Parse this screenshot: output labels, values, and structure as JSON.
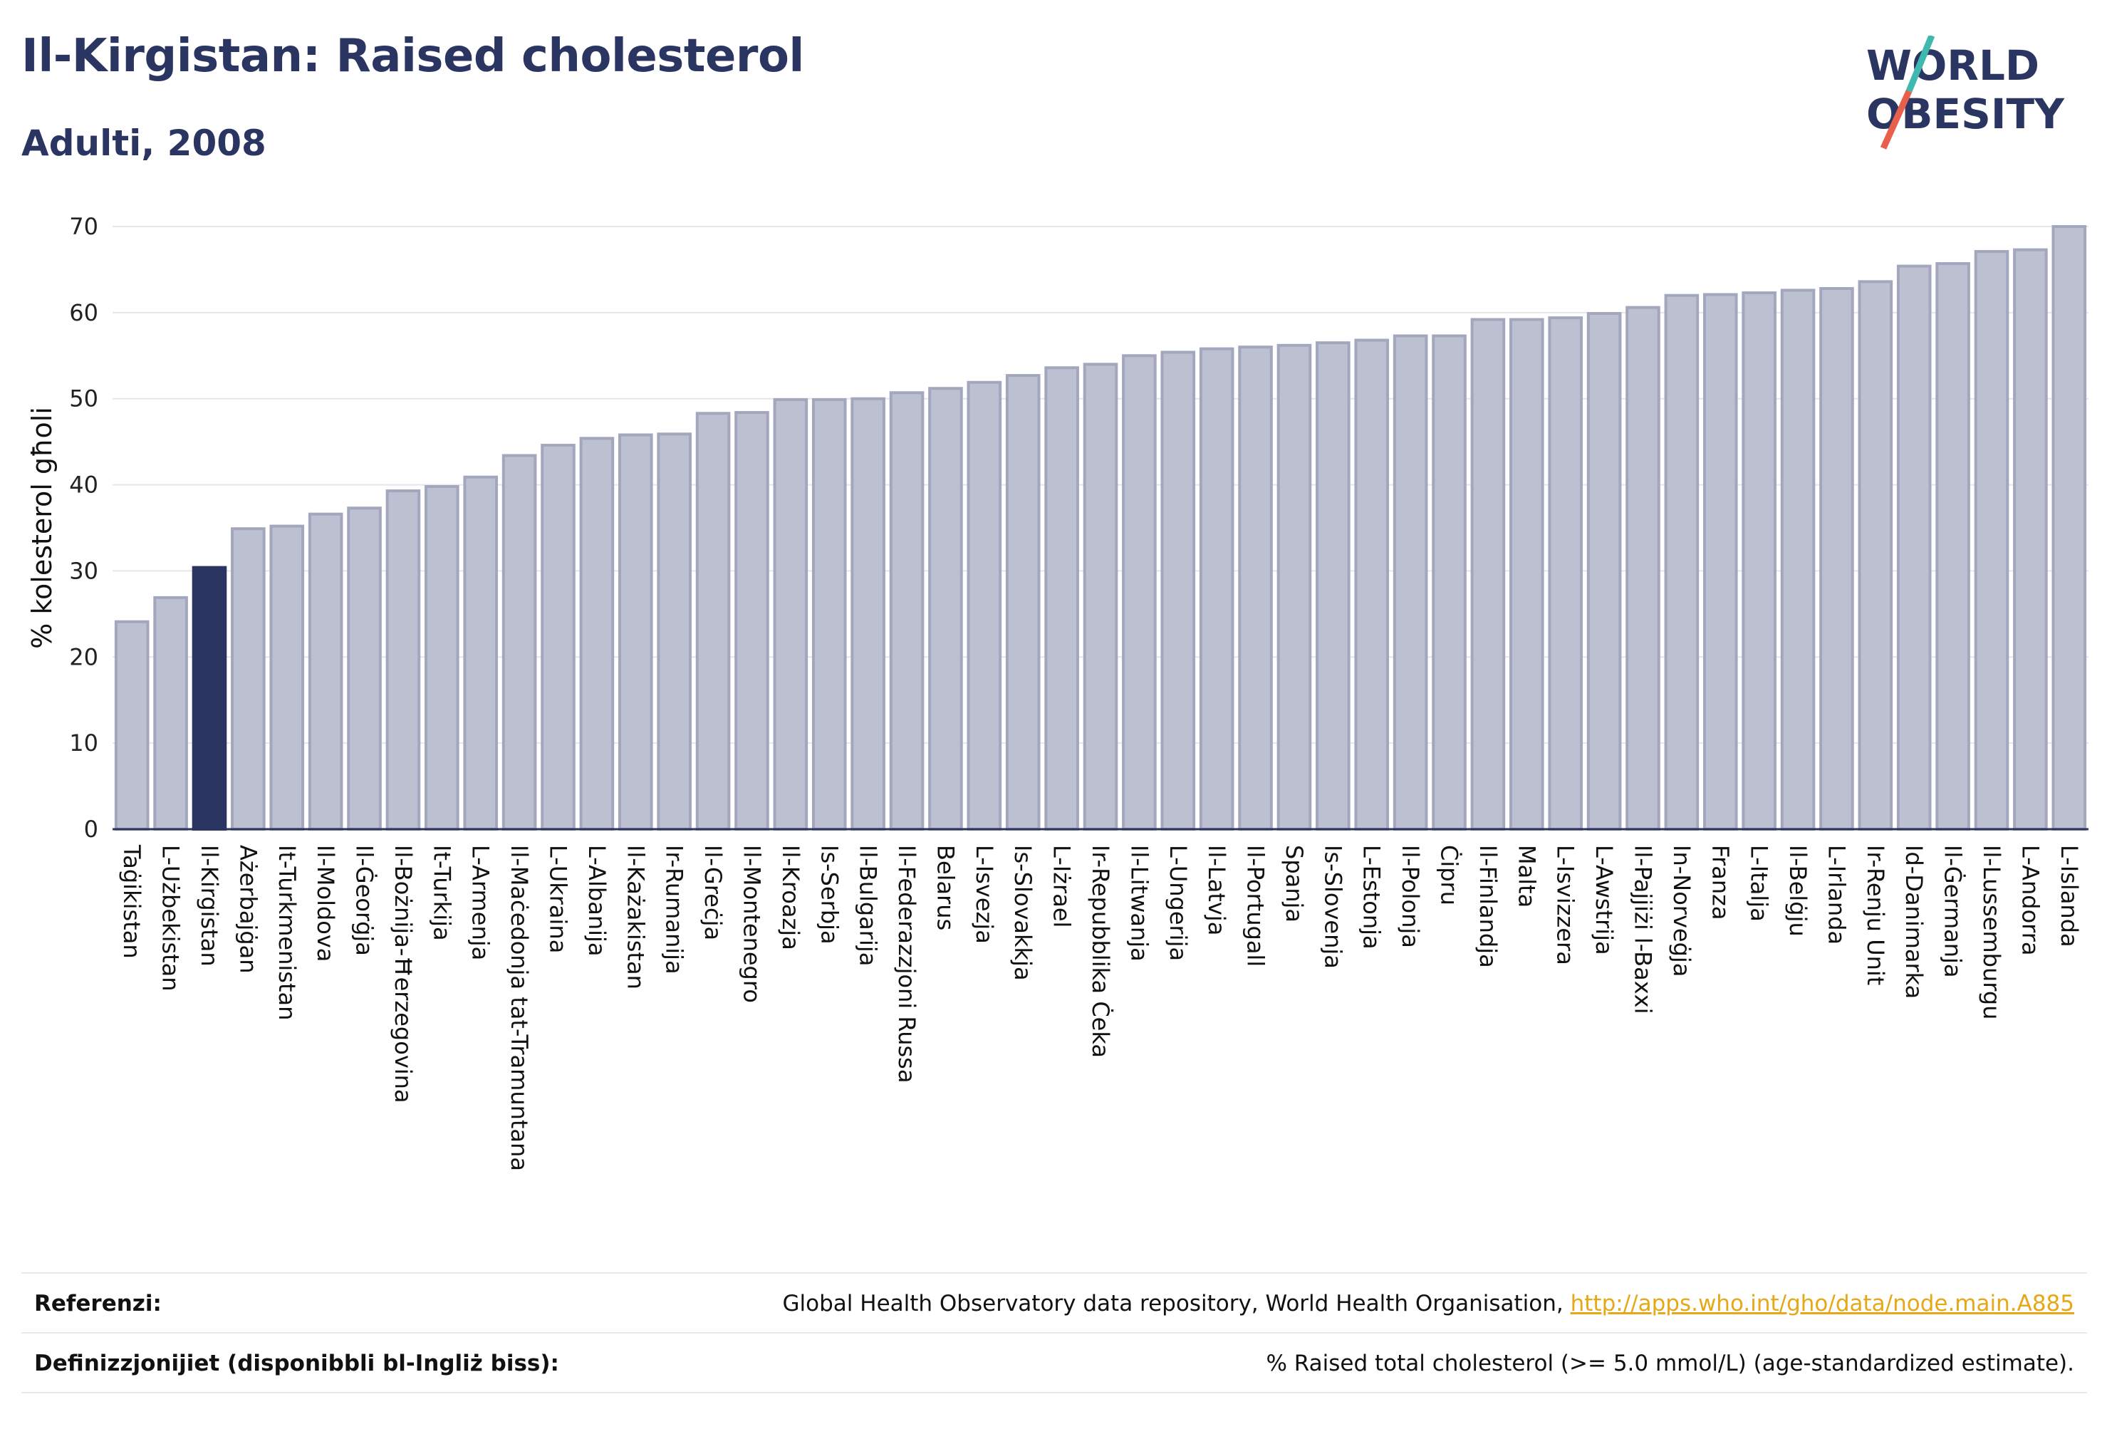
{
  "header": {
    "title": "Il-Kirgistan: Raised cholesterol",
    "subtitle": "Adulti, 2008"
  },
  "logo": {
    "line1": "WORLD",
    "line2": "OBESITY",
    "text_color": "#2b3561",
    "slash_colors": [
      "#3fb8b0",
      "#e8604c"
    ]
  },
  "chart_data": {
    "type": "bar",
    "ylabel": "% kolesterol għoli",
    "ylim": [
      0,
      70
    ],
    "yticks": [
      0,
      10,
      20,
      30,
      40,
      50,
      60,
      70
    ],
    "grid": true,
    "bar_color": "#bcc0d0",
    "bar_edge_color": "#a2a7bd",
    "highlight_color": "#2b3561",
    "highlight": "Il-Kirgistan",
    "categories": [
      "Taġikistan",
      "L-Użbekistan",
      "Il-Kirgistan",
      "Ażerbajġan",
      "It-Turkmenistan",
      "Il-Moldova",
      "Il-Ġeorġja",
      "Il-Bożnija-Ħerzegovina",
      "It-Turkija",
      "L-Armenja",
      "Il-Maċedonja tat-Tramuntana",
      "L-Ukraina",
      "L-Albanija",
      "Il-Każakistan",
      "Ir-Rumanija",
      "Il-Greċja",
      "Il-Montenegro",
      "Il-Kroazja",
      "Is-Serbja",
      "Il-Bulgarija",
      "Il-Federazzjoni Russa",
      "Belarus",
      "L-Isvezja",
      "Is-Slovakkja",
      "L-Iżrael",
      "Ir-Repubblika Ċeka",
      "Il-Litwanja",
      "L-Ungerija",
      "Il-Latvja",
      "Il-Portugall",
      "Spanja",
      "Is-Slovenja",
      "L-Estonja",
      "Il-Polonja",
      "Ċipru",
      "Il-Finlandja",
      "Malta",
      "L-Isvizzera",
      "L-Awstrija",
      "Il-Pajjiżi l-Baxxi",
      "In-Norveġja",
      "Franza",
      "L-Italja",
      "Il-Belġju",
      "L-Irlanda",
      "Ir-Renju Unit",
      "Id-Danimarka",
      "Il-Ġermanja",
      "Il-Lussemburgu",
      "L-Andorra",
      "L-Islanda"
    ],
    "values": [
      24.1,
      26.9,
      30.4,
      34.9,
      35.2,
      36.6,
      37.3,
      39.3,
      39.8,
      40.9,
      43.4,
      44.6,
      45.4,
      45.8,
      45.9,
      48.3,
      48.4,
      49.9,
      49.9,
      50.0,
      50.7,
      51.2,
      51.9,
      52.7,
      53.6,
      54.0,
      55.0,
      55.4,
      55.8,
      56.0,
      56.2,
      56.5,
      56.8,
      57.3,
      57.3,
      59.2,
      59.2,
      59.4,
      59.9,
      60.6,
      62.0,
      62.1,
      62.3,
      62.6,
      62.8,
      63.6,
      65.4,
      65.7,
      67.1,
      67.3,
      70.0
    ]
  },
  "footer": {
    "references_label": "Referenzi:",
    "references_text": "Global Health Observatory data repository, World Health Organisation, ",
    "references_link": "http://apps.who.int/gho/data/node.main.A885",
    "definitions_label": "Definizzjonijiet (disponibbli bl-Ingliż biss):",
    "definitions_text": "% Raised total cholesterol (>= 5.0 mmol/L) (age-standardized estimate)."
  }
}
